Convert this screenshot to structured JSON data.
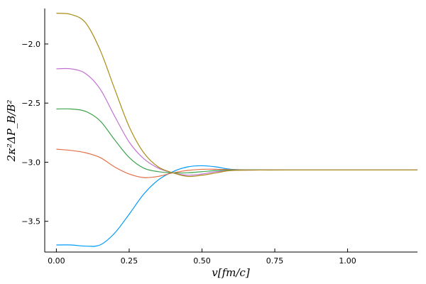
{
  "chart_data": {
    "type": "line",
    "title": "",
    "xlabel": "v[fm/c]",
    "ylabel": "2κ²ΔP_B/B²",
    "xlim": [
      -0.04,
      1.24
    ],
    "ylim": [
      -3.76,
      -1.7
    ],
    "xticks": [
      0.0,
      0.25,
      0.5,
      0.75,
      1.0
    ],
    "xtick_labels": [
      "0.00",
      "0.25",
      "0.50",
      "0.75",
      "1.00"
    ],
    "yticks": [
      -3.5,
      -3.0,
      -2.5,
      -2.0
    ],
    "ytick_labels": [
      "−3.5",
      "−3.0",
      "−2.5",
      "−2.0"
    ],
    "grid": false,
    "legend": "none",
    "series": [
      {
        "color": "#009AFA",
        "points": [
          [
            0.0,
            -3.7
          ],
          [
            0.05,
            -3.7
          ],
          [
            0.1,
            -3.71
          ],
          [
            0.15,
            -3.7
          ],
          [
            0.2,
            -3.6
          ],
          [
            0.25,
            -3.44
          ],
          [
            0.3,
            -3.27
          ],
          [
            0.35,
            -3.15
          ],
          [
            0.4,
            -3.08
          ],
          [
            0.45,
            -3.04
          ],
          [
            0.5,
            -3.03
          ],
          [
            0.55,
            -3.04
          ],
          [
            0.6,
            -3.06
          ],
          [
            0.7,
            -3.065
          ],
          [
            0.8,
            -3.066
          ],
          [
            1.0,
            -3.066
          ],
          [
            1.24,
            -3.066
          ]
        ]
      },
      {
        "color": "#E36F47",
        "points": [
          [
            0.0,
            -2.89
          ],
          [
            0.05,
            -2.9
          ],
          [
            0.1,
            -2.92
          ],
          [
            0.15,
            -2.96
          ],
          [
            0.2,
            -3.04
          ],
          [
            0.25,
            -3.1
          ],
          [
            0.3,
            -3.13
          ],
          [
            0.35,
            -3.12
          ],
          [
            0.4,
            -3.09
          ],
          [
            0.45,
            -3.07
          ],
          [
            0.5,
            -3.06
          ],
          [
            0.55,
            -3.06
          ],
          [
            0.6,
            -3.063
          ],
          [
            0.7,
            -3.066
          ],
          [
            0.8,
            -3.066
          ],
          [
            1.0,
            -3.066
          ],
          [
            1.24,
            -3.066
          ]
        ]
      },
      {
        "color": "#3EA44E",
        "points": [
          [
            0.0,
            -2.55
          ],
          [
            0.05,
            -2.55
          ],
          [
            0.1,
            -2.57
          ],
          [
            0.15,
            -2.65
          ],
          [
            0.2,
            -2.81
          ],
          [
            0.25,
            -2.96
          ],
          [
            0.3,
            -3.05
          ],
          [
            0.35,
            -3.08
          ],
          [
            0.4,
            -3.09
          ],
          [
            0.45,
            -3.09
          ],
          [
            0.5,
            -3.08
          ],
          [
            0.55,
            -3.07
          ],
          [
            0.6,
            -3.066
          ],
          [
            0.7,
            -3.066
          ],
          [
            0.8,
            -3.066
          ],
          [
            1.0,
            -3.066
          ],
          [
            1.24,
            -3.066
          ]
        ]
      },
      {
        "color": "#C271D2",
        "points": [
          [
            0.0,
            -2.21
          ],
          [
            0.05,
            -2.21
          ],
          [
            0.1,
            -2.25
          ],
          [
            0.15,
            -2.38
          ],
          [
            0.2,
            -2.61
          ],
          [
            0.25,
            -2.83
          ],
          [
            0.3,
            -2.97
          ],
          [
            0.35,
            -3.05
          ],
          [
            0.4,
            -3.09
          ],
          [
            0.45,
            -3.11
          ],
          [
            0.5,
            -3.1
          ],
          [
            0.55,
            -3.08
          ],
          [
            0.6,
            -3.07
          ],
          [
            0.7,
            -3.066
          ],
          [
            0.8,
            -3.066
          ],
          [
            1.0,
            -3.066
          ],
          [
            1.24,
            -3.066
          ]
        ]
      },
      {
        "color": "#AC8D18",
        "points": [
          [
            0.0,
            -1.74
          ],
          [
            0.05,
            -1.75
          ],
          [
            0.1,
            -1.82
          ],
          [
            0.15,
            -2.05
          ],
          [
            0.2,
            -2.38
          ],
          [
            0.25,
            -2.7
          ],
          [
            0.3,
            -2.92
          ],
          [
            0.35,
            -3.04
          ],
          [
            0.4,
            -3.09
          ],
          [
            0.45,
            -3.12
          ],
          [
            0.5,
            -3.11
          ],
          [
            0.55,
            -3.09
          ],
          [
            0.6,
            -3.07
          ],
          [
            0.7,
            -3.066
          ],
          [
            0.8,
            -3.066
          ],
          [
            1.0,
            -3.066
          ],
          [
            1.24,
            -3.066
          ]
        ]
      }
    ]
  }
}
